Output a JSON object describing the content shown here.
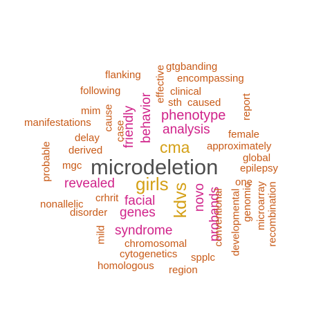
{
  "colors": {
    "top": "#4d4d4d",
    "second": "#d4a017",
    "third": "#d0238a",
    "rest": "#c85a17"
  },
  "words": [
    {
      "id": "microdeletion",
      "text": "microdeletion",
      "tier": "top"
    },
    {
      "id": "girls",
      "text": "girls",
      "tier": "second"
    },
    {
      "id": "cma",
      "text": "cma",
      "tier": "second"
    },
    {
      "id": "kdvs",
      "text": "kdvs",
      "tier": "second"
    },
    {
      "id": "phenotype",
      "text": "phenotype",
      "tier": "third"
    },
    {
      "id": "analysis",
      "text": "analysis",
      "tier": "third"
    },
    {
      "id": "behavior",
      "text": "behavior",
      "tier": "third"
    },
    {
      "id": "friendly",
      "text": "friendly",
      "tier": "third"
    },
    {
      "id": "revealed",
      "text": "revealed",
      "tier": "third"
    },
    {
      "id": "facial",
      "text": "facial",
      "tier": "third"
    },
    {
      "id": "genes",
      "text": "genes",
      "tier": "third"
    },
    {
      "id": "syndrome",
      "text": "syndrome",
      "tier": "third"
    },
    {
      "id": "novo",
      "text": "novo",
      "tier": "third"
    },
    {
      "id": "probands",
      "text": "probands",
      "tier": "third"
    },
    {
      "id": "gtgbanding",
      "text": "gtgbanding",
      "tier": "rest"
    },
    {
      "id": "effective",
      "text": "effective",
      "tier": "rest"
    },
    {
      "id": "flanking",
      "text": "flanking",
      "tier": "rest"
    },
    {
      "id": "encompassing",
      "text": "encompassing",
      "tier": "rest"
    },
    {
      "id": "following",
      "text": "following",
      "tier": "rest"
    },
    {
      "id": "clinical",
      "text": "clinical",
      "tier": "rest"
    },
    {
      "id": "sth",
      "text": "sth",
      "tier": "rest"
    },
    {
      "id": "caused",
      "text": "caused",
      "tier": "rest"
    },
    {
      "id": "report",
      "text": "report",
      "tier": "rest"
    },
    {
      "id": "mim",
      "text": "mim",
      "tier": "rest"
    },
    {
      "id": "cause",
      "text": "cause",
      "tier": "rest"
    },
    {
      "id": "case",
      "text": "case",
      "tier": "rest"
    },
    {
      "id": "manifestations",
      "text": "manifestations",
      "tier": "rest"
    },
    {
      "id": "delay",
      "text": "delay",
      "tier": "rest"
    },
    {
      "id": "female",
      "text": "female",
      "tier": "rest"
    },
    {
      "id": "derived",
      "text": "derived",
      "tier": "rest"
    },
    {
      "id": "approximately",
      "text": "approximately",
      "tier": "rest"
    },
    {
      "id": "probable",
      "text": "probable",
      "tier": "rest"
    },
    {
      "id": "mgc",
      "text": "mgc",
      "tier": "rest"
    },
    {
      "id": "global",
      "text": "global",
      "tier": "rest"
    },
    {
      "id": "epilepsy",
      "text": "epilepsy",
      "tier": "rest"
    },
    {
      "id": "one",
      "text": "one",
      "tier": "rest"
    },
    {
      "id": "crhrit",
      "text": "crhrit",
      "tier": "rest"
    },
    {
      "id": "nonallelic",
      "text": "nonallelic",
      "tier": "rest"
    },
    {
      "id": "disorder",
      "text": "disorder",
      "tier": "rest"
    },
    {
      "id": "mild",
      "text": "mild",
      "tier": "rest"
    },
    {
      "id": "conventional",
      "text": "conventional",
      "tier": "rest"
    },
    {
      "id": "genomic",
      "text": "genomic",
      "tier": "rest"
    },
    {
      "id": "microarray",
      "text": "microarray",
      "tier": "rest"
    },
    {
      "id": "recombination",
      "text": "recombination",
      "tier": "rest"
    },
    {
      "id": "developmental",
      "text": "developmental",
      "tier": "rest"
    },
    {
      "id": "chromosomal",
      "text": "chromosomal",
      "tier": "rest"
    },
    {
      "id": "cytogenetics",
      "text": "cytogenetics",
      "tier": "rest"
    },
    {
      "id": "spplc",
      "text": "spplc",
      "tier": "rest"
    },
    {
      "id": "homologous",
      "text": "homologous",
      "tier": "rest"
    },
    {
      "id": "region",
      "text": "region",
      "tier": "rest"
    }
  ]
}
